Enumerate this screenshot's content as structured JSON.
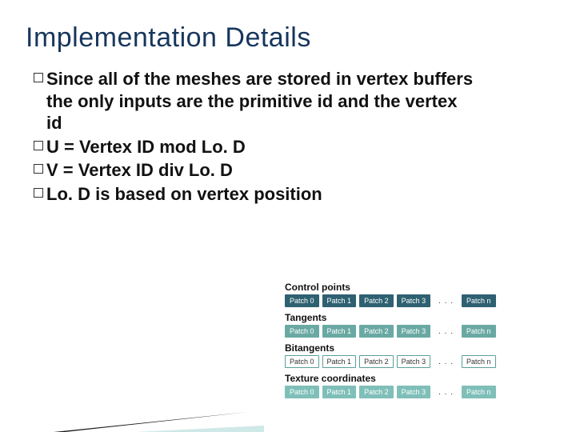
{
  "title": {
    "text": "Implementation Details",
    "color": "#17365d",
    "fontsize": 34
  },
  "body_fontsize": 22,
  "bullets": [
    "Since all of the meshes are stored in vertex buffers the only inputs are the primitive id and the vertex id",
    "U = Vertex ID mod Lo. D",
    "V = Vertex ID div Lo. D",
    "Lo. D is based on vertex position"
  ],
  "diagram": {
    "ellipsis": ". . .",
    "groups": [
      {
        "label": "Control points",
        "bg": "#2e6171",
        "fg": "#ffffff",
        "border": "#2e6171"
      },
      {
        "label": "Tangents",
        "bg": "#6aa9a3",
        "fg": "#ffffff",
        "border": "#6aa9a3"
      },
      {
        "label": "Bitangents",
        "bg": "#ffffff",
        "fg": "#333333",
        "border": "#5aa09a"
      },
      {
        "label": "Texture coordinates",
        "bg": "#7fbfb9",
        "fg": "#ffffff",
        "border": "#7fbfb9"
      }
    ],
    "patches": [
      "Patch 0",
      "Patch 1",
      "Patch 2",
      "Patch 3"
    ],
    "last_patch": "Patch n"
  },
  "wedge": {
    "dark": "#1a1a1a",
    "light": "#cfe8e8"
  }
}
